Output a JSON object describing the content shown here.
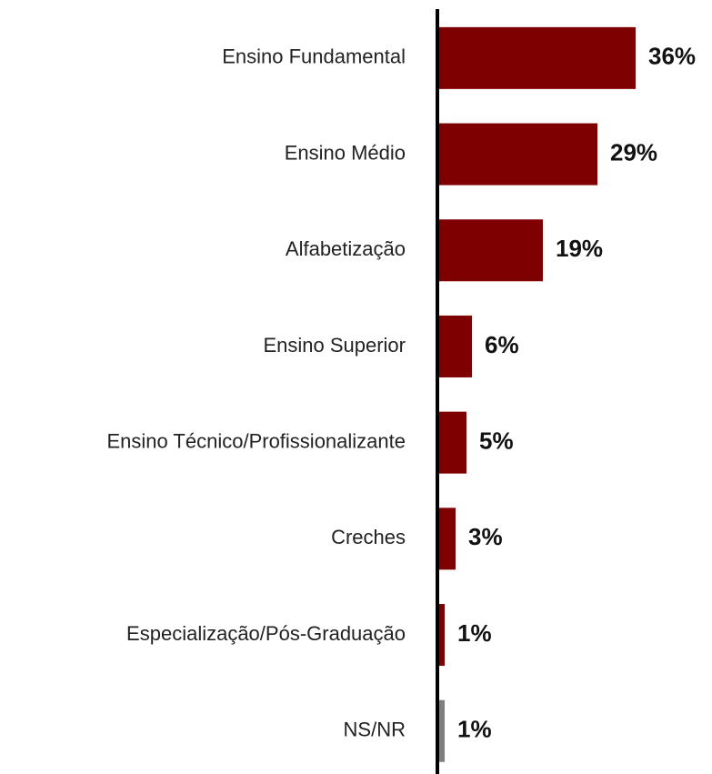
{
  "chart_data": {
    "type": "barh",
    "categories": [
      "Ensino Fundamental",
      "Ensino Médio",
      "Alfabetização",
      "Ensino Superior",
      "Ensino Técnico/Profissionalizante",
      "Creches",
      "Especialização/Pós-Graduação",
      "NS/NR"
    ],
    "values": [
      36,
      29,
      19,
      6,
      5,
      3,
      1,
      1
    ],
    "value_labels": [
      "36%",
      "29%",
      "19%",
      "6%",
      "5%",
      "3%",
      "1%",
      "1%"
    ],
    "colors": [
      "#7f0000",
      "#7f0000",
      "#7f0000",
      "#7f0000",
      "#7f0000",
      "#7f0000",
      "#7f0000",
      "#7f7f7f"
    ]
  }
}
